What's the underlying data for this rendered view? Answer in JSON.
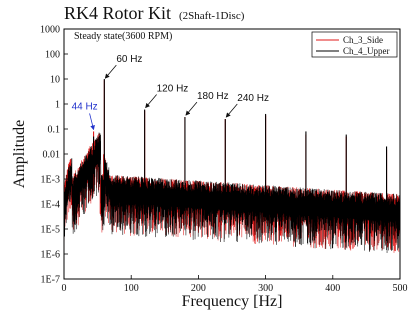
{
  "chart_data": {
    "type": "line",
    "title": "RK4 Rotor Kit",
    "subtitle": "(2Shaft-1Disc)",
    "xlabel": "Frequency [Hz]",
    "ylabel": "Amplitude",
    "xlim": [
      0,
      500
    ],
    "ylim": [
      1e-07,
      1000
    ],
    "yscale": "log",
    "grid": false,
    "legend_position": "top-right",
    "xticks": [
      "0",
      "100",
      "200",
      "300",
      "400",
      "500"
    ],
    "yticks": [
      "1E-7",
      "1E-6",
      "1E-5",
      "1E-4",
      "1E-3",
      "0.01",
      "0.1",
      "1",
      "10",
      "100",
      "1000"
    ],
    "condition_label": "Steady state(3600 RPM)",
    "series": [
      {
        "name": "Ch_3_Side",
        "color": "#e01818",
        "peaks": [
          {
            "x": 44,
            "y": 0.08
          },
          {
            "x": 60,
            "y": 9
          },
          {
            "x": 120,
            "y": 0.55
          },
          {
            "x": 180,
            "y": 0.3
          },
          {
            "x": 240,
            "y": 0.25
          },
          {
            "x": 300,
            "y": 0.35
          },
          {
            "x": 360,
            "y": 0.06
          },
          {
            "x": 420,
            "y": 0.05
          },
          {
            "x": 480,
            "y": 0.015
          }
        ]
      },
      {
        "name": "Ch_4_Upper",
        "color": "#000000",
        "peaks": [
          {
            "x": 44,
            "y": 0.05
          },
          {
            "x": 60,
            "y": 10
          },
          {
            "x": 120,
            "y": 0.6
          },
          {
            "x": 180,
            "y": 0.3
          },
          {
            "x": 240,
            "y": 0.25
          },
          {
            "x": 300,
            "y": 0.4
          },
          {
            "x": 360,
            "y": 0.08
          },
          {
            "x": 420,
            "y": 0.06
          },
          {
            "x": 480,
            "y": 0.02
          }
        ]
      }
    ],
    "annotations": [
      {
        "text": "44 Hz",
        "x": 44,
        "y": 0.08,
        "color": "#2233cc"
      },
      {
        "text": "60 Hz",
        "x": 60,
        "y": 9,
        "color": "#111111"
      },
      {
        "text": "120 Hz",
        "x": 120,
        "y": 0.6,
        "color": "#111111"
      },
      {
        "text": "180 Hz",
        "x": 180,
        "y": 0.3,
        "color": "#111111"
      },
      {
        "text": "240 Hz",
        "x": 240,
        "y": 0.25,
        "color": "#111111"
      }
    ]
  }
}
